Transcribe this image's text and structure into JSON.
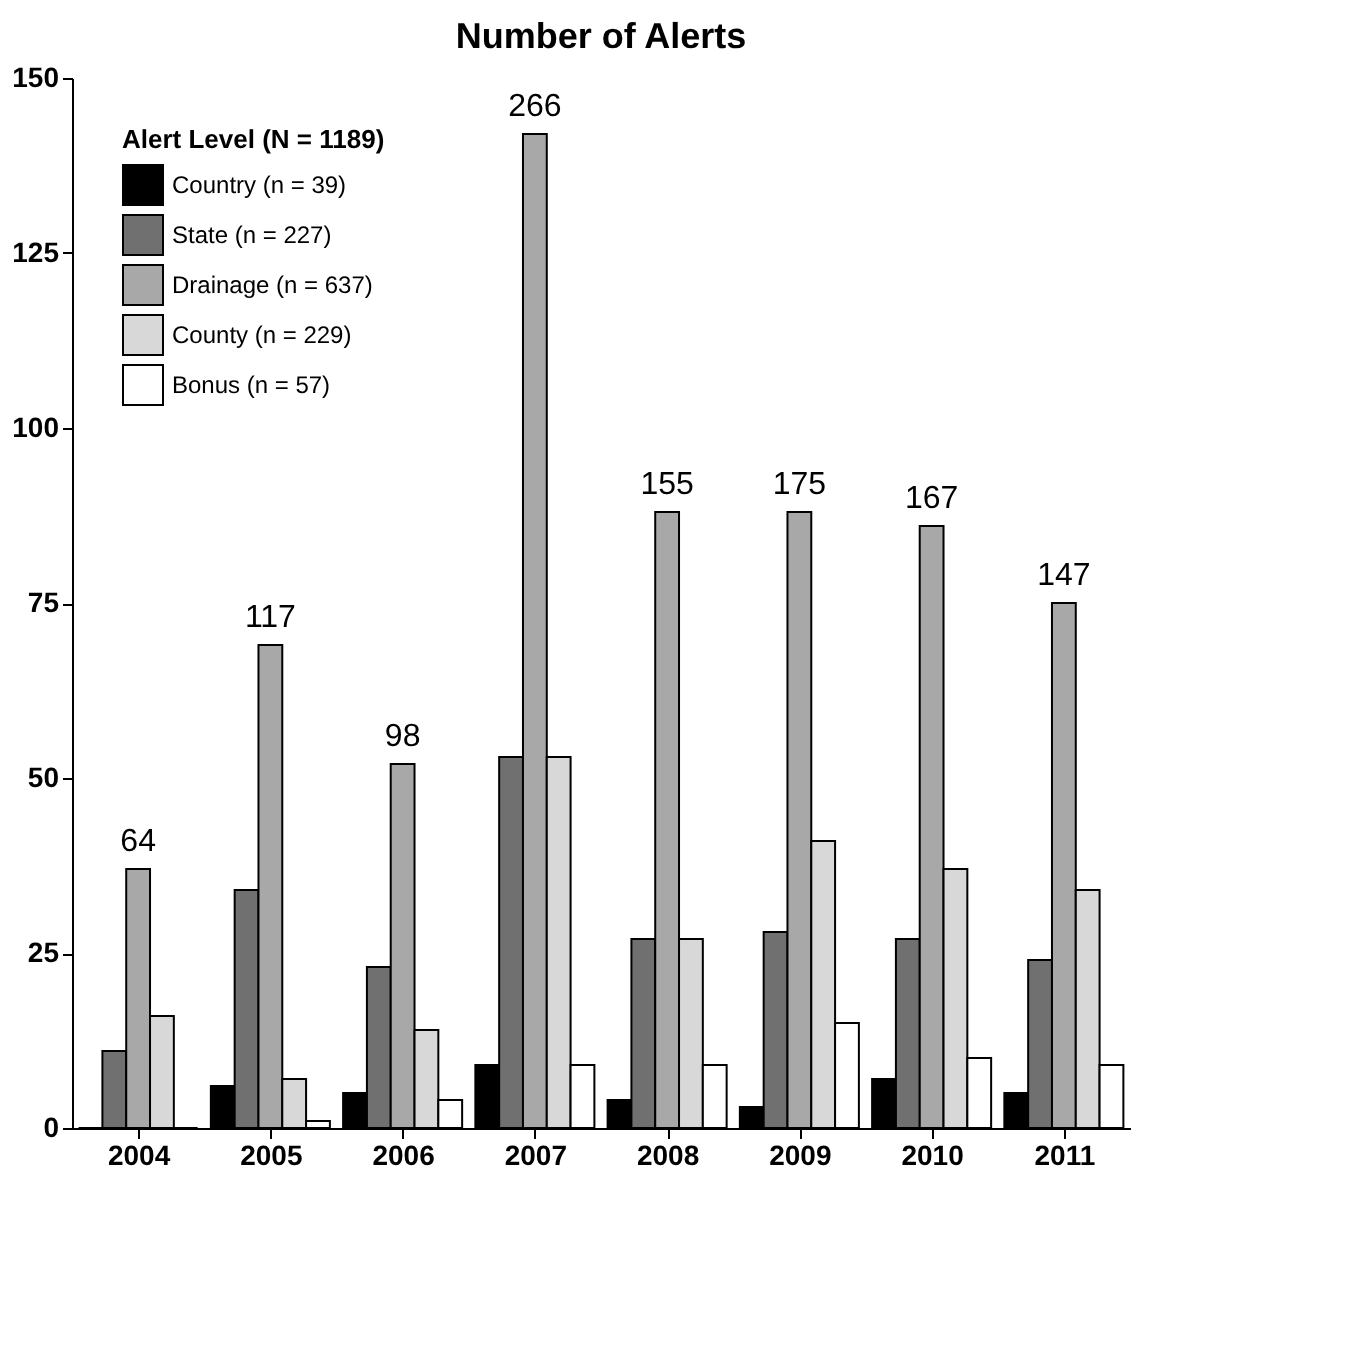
{
  "chart_data": {
    "type": "bar",
    "title": "Number of Alerts",
    "legend_title": "Alert Level (N = 1189)",
    "legend": "top left",
    "grid": false,
    "categories": [
      "2004",
      "2005",
      "2006",
      "2007",
      "2008",
      "2009",
      "2010",
      "2011"
    ],
    "series": [
      {
        "name": "Country (n = 39)",
        "color": "#000000",
        "values": [
          0,
          6,
          5,
          9,
          4,
          3,
          7,
          5
        ]
      },
      {
        "name": "State (n = 227)",
        "color": "#707070",
        "values": [
          11,
          34,
          23,
          53,
          27,
          28,
          27,
          24
        ]
      },
      {
        "name": "Drainage (n = 637)",
        "color": "#a8a8a8",
        "values": [
          37,
          69,
          52,
          142,
          88,
          88,
          86,
          75
        ]
      },
      {
        "name": "County (n = 229)",
        "color": "#d8d8d8",
        "values": [
          16,
          7,
          14,
          53,
          27,
          41,
          37,
          34
        ]
      },
      {
        "name": "Bonus (n = 57)",
        "color": "#ffffff",
        "values": [
          0,
          1,
          4,
          9,
          9,
          15,
          10,
          9
        ]
      }
    ],
    "totals": [
      "64",
      "117",
      "98",
      "266",
      "155",
      "175",
      "167",
      "147"
    ],
    "ylim": [
      0,
      150
    ],
    "yticks": [
      0,
      25,
      50,
      75,
      100,
      125,
      150
    ]
  }
}
